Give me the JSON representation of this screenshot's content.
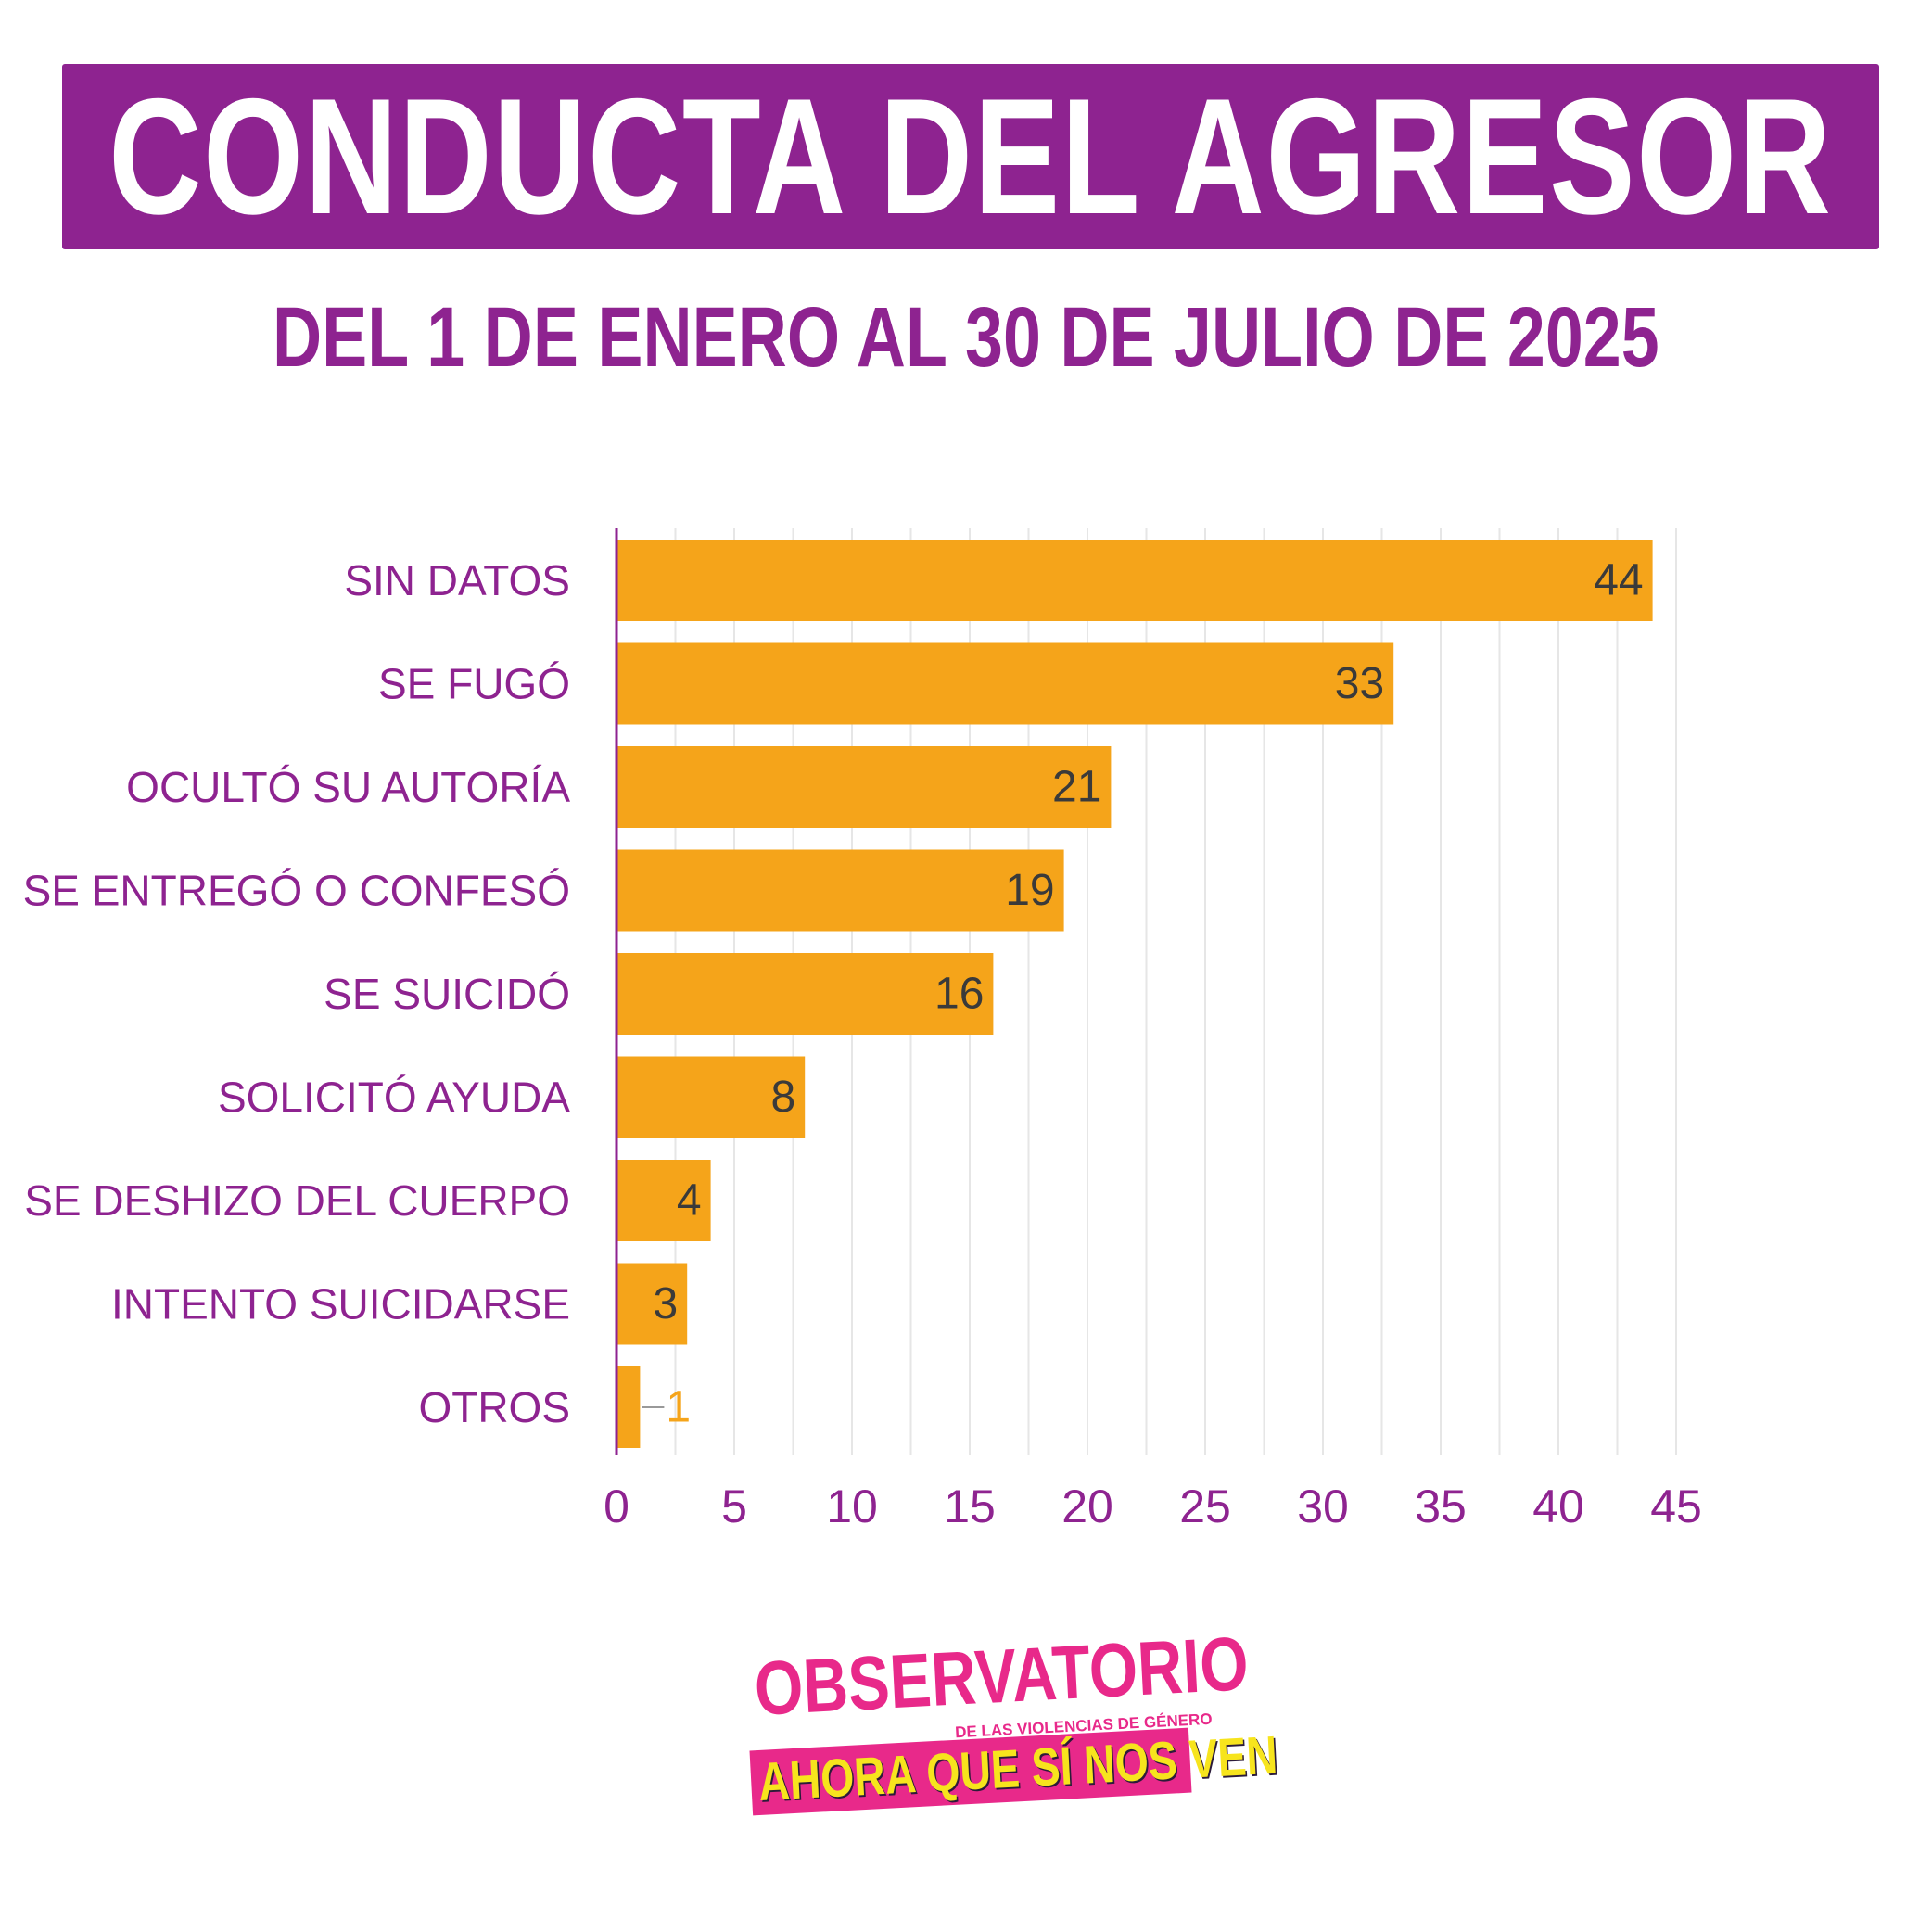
{
  "header": {
    "title": "CONDUCTA DEL AGRESOR",
    "subtitle": "DEL 1 DE ENERO AL 30 DE JULIO DE 2025"
  },
  "colors": {
    "accent_purple": "#8e2390",
    "bar_orange": "#f5a41a",
    "value_text": "#3a3a3a",
    "grid": "#e6e6e6",
    "logo_pink": "#e8298a",
    "logo_yellow": "#f7e41d"
  },
  "chart_data": {
    "type": "bar",
    "orientation": "horizontal",
    "categories": [
      "SIN DATOS",
      "SE FUGÓ",
      "OCULTÓ SU AUTORÍA",
      "SE ENTREGÓ O CONFESÓ",
      "SE SUICIDÓ",
      "SOLICITÓ AYUDA",
      "SE DESHIZO DEL CUERPO",
      "INTENTO SUICIDARSE",
      "OTROS"
    ],
    "values": [
      44,
      33,
      21,
      19,
      16,
      8,
      4,
      3,
      1
    ],
    "title": "",
    "xlabel": "",
    "ylabel": "",
    "xlim": [
      0,
      45
    ],
    "xticks": [
      0,
      5,
      10,
      15,
      20,
      25,
      30,
      35,
      40,
      45
    ],
    "grid": true,
    "legend": "none"
  },
  "logo": {
    "line1": "OBSERVATORIO",
    "line2": "DE LAS VIOLENCIAS DE GÉNERO",
    "line3": "AHORA QUE SÍ NOS VEN"
  }
}
